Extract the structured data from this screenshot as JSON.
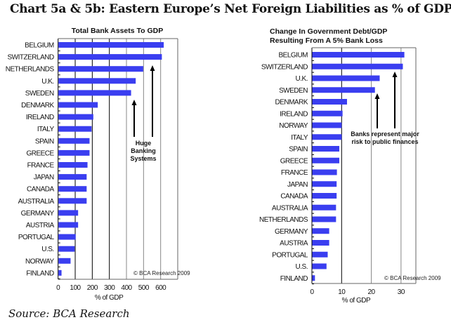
{
  "title": "Chart 5a & 5b: Eastern Europe’s Net Foreign Liabilities as % of GDP",
  "source": "Source: BCA Research",
  "colors": {
    "bar": "#3a3ef0",
    "gridline_dark": "#000000",
    "gridline_light": "#888888"
  },
  "chart_data": [
    {
      "type": "bar",
      "orientation": "horizontal",
      "title": "Total Bank Assets To GDP",
      "xlabel": "% of GDP",
      "xlim": [
        0,
        700
      ],
      "xticks": [
        "0",
        "100",
        "200",
        "300",
        "400",
        "500",
        "600"
      ],
      "grid": true,
      "copyright": "© BCA Research 2009",
      "annotation": [
        "Huge",
        "Banking",
        "Systems"
      ],
      "categories": [
        "BELGIUM",
        "SWITZERLAND",
        "NETHERLANDS",
        "U.K.",
        "SWEDEN",
        "DENMARK",
        "IRELAND",
        "ITALY",
        "SPAIN",
        "GREECE",
        "FRANCE",
        "JAPAN",
        "CANADA",
        "AUSTRALIA",
        "GERMANY",
        "AUSTRIA",
        "PORTUGAL",
        "U.S.",
        "NORWAY",
        "FINLAND"
      ],
      "values": [
        616,
        605,
        496,
        452,
        425,
        230,
        204,
        194,
        182,
        182,
        170,
        165,
        165,
        165,
        115,
        115,
        101,
        95,
        71,
        18
      ]
    },
    {
      "type": "bar",
      "orientation": "horizontal",
      "title": [
        "Change In Government Debt/GDP",
        "Resulting From A 5% Bank Loss"
      ],
      "xlabel": "% of GDP",
      "xlim": [
        0,
        35
      ],
      "xticks": [
        "0",
        "10",
        "20",
        "30"
      ],
      "grid": true,
      "copyright": "© BCA Research 2009",
      "annotation": [
        "Banks represent major",
        "risk to public finances"
      ],
      "categories": [
        "BELGIUM",
        "SWITZERLAND",
        "U.K.",
        "SWEDEN",
        "DENMARK",
        "IRELAND",
        "NORWAY",
        "ITALY",
        "SPAIN",
        "GREECE",
        "FRANCE",
        "JAPAN",
        "CANADA",
        "AUSTRALIA",
        "NETHERLANDS",
        "GERMANY",
        "AUSTRIA",
        "PORTUGAL",
        "U.S.",
        "FINLAND"
      ],
      "values": [
        31,
        30.5,
        22.7,
        21.1,
        11.7,
        10.2,
        9.9,
        9.9,
        9.1,
        9.1,
        8.3,
        8.2,
        8.2,
        8.0,
        8.0,
        5.7,
        5.7,
        5.2,
        4.8,
        0.9
      ]
    }
  ]
}
